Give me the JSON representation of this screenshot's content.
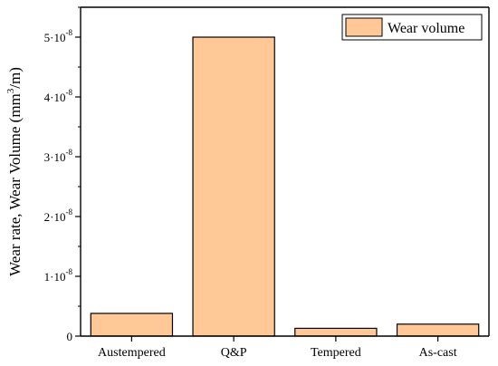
{
  "colors": {
    "bar_fill": "#FFC896",
    "bar_stroke": "#000000",
    "axis": "#000000",
    "background": "#FFFFFF"
  },
  "chart_data": {
    "type": "bar",
    "title": "",
    "xlabel": "",
    "ylabel": "Wear rate, Wear Volume (mm³/m)",
    "ylabel_parts": {
      "before": "Wear rate, Wear Volume (mm",
      "sup": "3",
      "after": "/m)"
    },
    "categories": [
      "Austempered",
      "Q&P",
      "Tempered",
      "As-cast"
    ],
    "series": [
      {
        "name": "Wear volume",
        "values": [
          3.8e-09,
          5e-08,
          1.3e-09,
          2e-09
        ]
      }
    ],
    "ylim": [
      0,
      5.5e-08
    ],
    "y_ticks": [
      {
        "value": 0,
        "mantissa": "0",
        "exponent": ""
      },
      {
        "value": 1e-08,
        "mantissa": "1·10",
        "exponent": "-8"
      },
      {
        "value": 2e-08,
        "mantissa": "2·10",
        "exponent": "-8"
      },
      {
        "value": 3e-08,
        "mantissa": "3·10",
        "exponent": "-8"
      },
      {
        "value": 4e-08,
        "mantissa": "4·10",
        "exponent": "-8"
      },
      {
        "value": 5e-08,
        "mantissa": "5·10",
        "exponent": "-8"
      }
    ],
    "grid": false,
    "legend_position": "top-right"
  }
}
